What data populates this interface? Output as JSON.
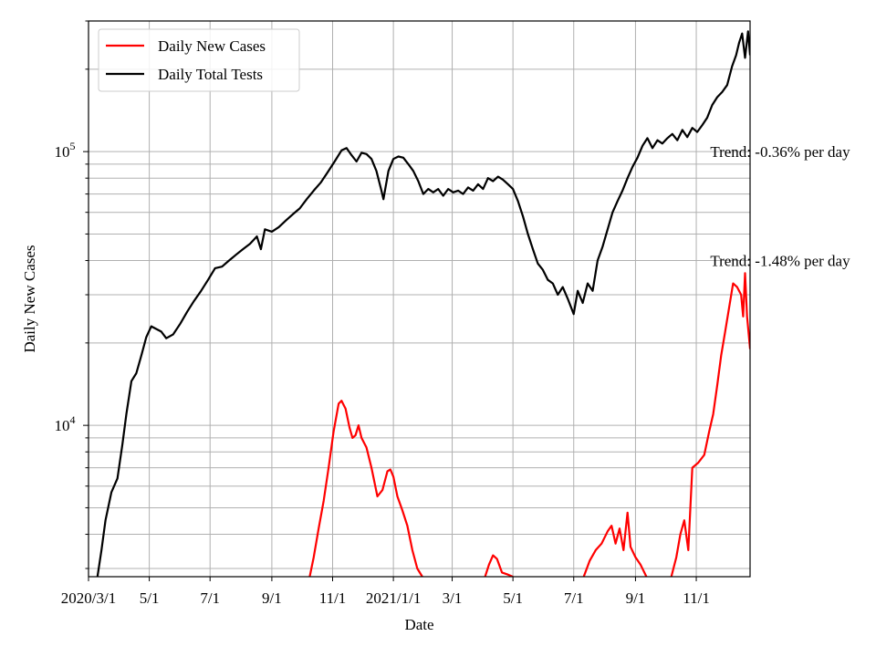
{
  "chart_data": {
    "type": "line",
    "title": "",
    "xlabel": "Date",
    "ylabel": "Daily New Cases",
    "yscale": "log",
    "ylim": [
      2800,
      300000
    ],
    "xlim": [
      "2020-03-01",
      "2021-12-25"
    ],
    "grid": true,
    "legend": {
      "position": "top-left"
    },
    "x_ticks": [
      {
        "date": "2020-03-01",
        "label": "2020/3/1"
      },
      {
        "date": "2020-05-01",
        "label": "5/1"
      },
      {
        "date": "2020-07-01",
        "label": "7/1"
      },
      {
        "date": "2020-09-01",
        "label": "9/1"
      },
      {
        "date": "2020-11-01",
        "label": "11/1"
      },
      {
        "date": "2021-01-01",
        "label": "2021/1/1"
      },
      {
        "date": "2021-03-01",
        "label": "3/1"
      },
      {
        "date": "2021-05-01",
        "label": "5/1"
      },
      {
        "date": "2021-07-01",
        "label": "7/1"
      },
      {
        "date": "2021-09-01",
        "label": "9/1"
      },
      {
        "date": "2021-11-01",
        "label": "11/1"
      }
    ],
    "y_ticks": [
      {
        "value": 10000,
        "base": "10",
        "exp": "4"
      },
      {
        "value": 100000,
        "base": "10",
        "exp": "5"
      }
    ],
    "series": [
      {
        "name": "Daily New Cases",
        "color": "#ff0000",
        "points": [
          [
            "2020-10-09",
            2800
          ],
          [
            "2020-10-13",
            3300
          ],
          [
            "2020-10-18",
            4200
          ],
          [
            "2020-10-23",
            5300
          ],
          [
            "2020-10-28",
            7000
          ],
          [
            "2020-11-02",
            9500
          ],
          [
            "2020-11-07",
            12000
          ],
          [
            "2020-11-10",
            12300
          ],
          [
            "2020-11-14",
            11500
          ],
          [
            "2020-11-18",
            9800
          ],
          [
            "2020-11-21",
            9000
          ],
          [
            "2020-11-24",
            9200
          ],
          [
            "2020-11-27",
            10000
          ],
          [
            "2020-11-30",
            9000
          ],
          [
            "2020-12-05",
            8300
          ],
          [
            "2020-12-10",
            7000
          ],
          [
            "2020-12-16",
            5500
          ],
          [
            "2020-12-21",
            5800
          ],
          [
            "2020-12-26",
            6800
          ],
          [
            "2020-12-29",
            6900
          ],
          [
            "2021-01-01",
            6500
          ],
          [
            "2021-01-05",
            5500
          ],
          [
            "2021-01-10",
            4900
          ],
          [
            "2021-01-15",
            4300
          ],
          [
            "2021-01-20",
            3500
          ],
          [
            "2021-01-25",
            3000
          ],
          [
            "2021-01-30",
            2800
          ],
          null,
          [
            "2021-04-03",
            2800
          ],
          [
            "2021-04-07",
            3100
          ],
          [
            "2021-04-11",
            3350
          ],
          [
            "2021-04-15",
            3250
          ],
          [
            "2021-04-20",
            2900
          ],
          [
            "2021-04-26",
            2850
          ],
          [
            "2021-05-01",
            2800
          ],
          null,
          [
            "2021-07-11",
            2800
          ],
          [
            "2021-07-17",
            3200
          ],
          [
            "2021-07-23",
            3500
          ],
          [
            "2021-07-29",
            3700
          ],
          [
            "2021-08-04",
            4100
          ],
          [
            "2021-08-08",
            4300
          ],
          [
            "2021-08-12",
            3700
          ],
          [
            "2021-08-16",
            4200
          ],
          [
            "2021-08-20",
            3500
          ],
          [
            "2021-08-24",
            4800
          ],
          [
            "2021-08-27",
            3600
          ],
          [
            "2021-09-01",
            3300
          ],
          [
            "2021-09-06",
            3100
          ],
          [
            "2021-09-12",
            2800
          ],
          null,
          [
            "2021-10-07",
            2800
          ],
          [
            "2021-10-12",
            3300
          ],
          [
            "2021-10-16",
            4000
          ],
          [
            "2021-10-20",
            4500
          ],
          [
            "2021-10-24",
            3500
          ],
          [
            "2021-10-28",
            7000
          ],
          [
            "2021-11-03",
            7300
          ],
          [
            "2021-11-09",
            7800
          ],
          [
            "2021-11-14",
            9500
          ],
          [
            "2021-11-18",
            11000
          ],
          [
            "2021-11-22",
            14000
          ],
          [
            "2021-11-26",
            18000
          ],
          [
            "2021-11-30",
            22000
          ],
          [
            "2021-12-04",
            27000
          ],
          [
            "2021-12-08",
            33000
          ],
          [
            "2021-12-12",
            32000
          ],
          [
            "2021-12-16",
            30000
          ],
          [
            "2021-12-18",
            25000
          ],
          [
            "2021-12-20",
            36000
          ],
          [
            "2021-12-22",
            25000
          ],
          [
            "2021-12-25",
            19000
          ]
        ]
      },
      {
        "name": "Daily Total Tests",
        "color": "#000000",
        "points": [
          [
            "2020-03-10",
            2800
          ],
          [
            "2020-03-14",
            3500
          ],
          [
            "2020-03-18",
            4500
          ],
          [
            "2020-03-24",
            5700
          ],
          [
            "2020-03-30",
            6400
          ],
          [
            "2020-04-04",
            8500
          ],
          [
            "2020-04-08",
            11000
          ],
          [
            "2020-04-13",
            14500
          ],
          [
            "2020-04-18",
            15500
          ],
          [
            "2020-04-23",
            18000
          ],
          [
            "2020-04-28",
            21000
          ],
          [
            "2020-05-03",
            23000
          ],
          [
            "2020-05-08",
            22500
          ],
          [
            "2020-05-13",
            22000
          ],
          [
            "2020-05-18",
            20800
          ],
          [
            "2020-05-25",
            21500
          ],
          [
            "2020-06-01",
            23500
          ],
          [
            "2020-06-08",
            26000
          ],
          [
            "2020-06-15",
            28500
          ],
          [
            "2020-06-22",
            31000
          ],
          [
            "2020-06-29",
            34000
          ],
          [
            "2020-07-06",
            37500
          ],
          [
            "2020-07-13",
            38000
          ],
          [
            "2020-07-20",
            40000
          ],
          [
            "2020-07-27",
            42000
          ],
          [
            "2020-08-03",
            44000
          ],
          [
            "2020-08-10",
            46000
          ],
          [
            "2020-08-17",
            49000
          ],
          [
            "2020-08-21",
            44000
          ],
          [
            "2020-08-25",
            52000
          ],
          [
            "2020-09-01",
            51000
          ],
          [
            "2020-09-08",
            53000
          ],
          [
            "2020-09-15",
            56000
          ],
          [
            "2020-09-22",
            59000
          ],
          [
            "2020-09-29",
            62000
          ],
          [
            "2020-10-06",
            67000
          ],
          [
            "2020-10-13",
            72000
          ],
          [
            "2020-10-20",
            77000
          ],
          [
            "2020-10-27",
            84000
          ],
          [
            "2020-11-03",
            92000
          ],
          [
            "2020-11-10",
            101000
          ],
          [
            "2020-11-15",
            103000
          ],
          [
            "2020-11-20",
            97000
          ],
          [
            "2020-11-25",
            92000
          ],
          [
            "2020-11-30",
            99000
          ],
          [
            "2020-12-05",
            98000
          ],
          [
            "2020-12-10",
            94000
          ],
          [
            "2020-12-15",
            85000
          ],
          [
            "2020-12-20",
            72000
          ],
          [
            "2020-12-22",
            67000
          ],
          [
            "2020-12-27",
            85000
          ],
          [
            "2021-01-01",
            94000
          ],
          [
            "2021-01-06",
            96000
          ],
          [
            "2021-01-11",
            95000
          ],
          [
            "2021-01-16",
            90000
          ],
          [
            "2021-01-21",
            85000
          ],
          [
            "2021-01-26",
            78000
          ],
          [
            "2021-01-31",
            70000
          ],
          [
            "2021-02-05",
            73000
          ],
          [
            "2021-02-10",
            71000
          ],
          [
            "2021-02-15",
            73000
          ],
          [
            "2021-02-20",
            69000
          ],
          [
            "2021-02-25",
            73000
          ],
          [
            "2021-03-02",
            71000
          ],
          [
            "2021-03-07",
            72000
          ],
          [
            "2021-03-12",
            70000
          ],
          [
            "2021-03-17",
            74000
          ],
          [
            "2021-03-22",
            72000
          ],
          [
            "2021-03-27",
            76000
          ],
          [
            "2021-04-01",
            73000
          ],
          [
            "2021-04-06",
            80000
          ],
          [
            "2021-04-11",
            78000
          ],
          [
            "2021-04-16",
            81000
          ],
          [
            "2021-04-21",
            79000
          ],
          [
            "2021-04-26",
            76000
          ],
          [
            "2021-05-01",
            73000
          ],
          [
            "2021-05-06",
            66000
          ],
          [
            "2021-05-11",
            58000
          ],
          [
            "2021-05-16",
            50000
          ],
          [
            "2021-05-21",
            44000
          ],
          [
            "2021-05-26",
            39000
          ],
          [
            "2021-05-31",
            37000
          ],
          [
            "2021-06-05",
            34000
          ],
          [
            "2021-06-10",
            33000
          ],
          [
            "2021-06-15",
            30000
          ],
          [
            "2021-06-20",
            32000
          ],
          [
            "2021-06-25",
            29000
          ],
          [
            "2021-07-01",
            25500
          ],
          [
            "2021-07-05",
            31000
          ],
          [
            "2021-07-10",
            28000
          ],
          [
            "2021-07-15",
            33000
          ],
          [
            "2021-07-20",
            31000
          ],
          [
            "2021-07-25",
            40000
          ],
          [
            "2021-07-30",
            45000
          ],
          [
            "2021-08-04",
            52000
          ],
          [
            "2021-08-09",
            60000
          ],
          [
            "2021-08-14",
            66000
          ],
          [
            "2021-08-19",
            72000
          ],
          [
            "2021-08-24",
            80000
          ],
          [
            "2021-08-29",
            88000
          ],
          [
            "2021-09-03",
            95000
          ],
          [
            "2021-09-08",
            105000
          ],
          [
            "2021-09-13",
            112000
          ],
          [
            "2021-09-18",
            103000
          ],
          [
            "2021-09-23",
            110000
          ],
          [
            "2021-09-28",
            107000
          ],
          [
            "2021-10-03",
            112000
          ],
          [
            "2021-10-08",
            116000
          ],
          [
            "2021-10-13",
            110000
          ],
          [
            "2021-10-18",
            120000
          ],
          [
            "2021-10-23",
            113000
          ],
          [
            "2021-10-28",
            122000
          ],
          [
            "2021-11-02",
            118000
          ],
          [
            "2021-11-07",
            125000
          ],
          [
            "2021-11-12",
            133000
          ],
          [
            "2021-11-17",
            148000
          ],
          [
            "2021-11-22",
            158000
          ],
          [
            "2021-11-27",
            165000
          ],
          [
            "2021-12-02",
            175000
          ],
          [
            "2021-12-07",
            205000
          ],
          [
            "2021-12-11",
            225000
          ],
          [
            "2021-12-14",
            250000
          ],
          [
            "2021-12-17",
            270000
          ],
          [
            "2021-12-20",
            220000
          ],
          [
            "2021-12-23",
            275000
          ],
          [
            "2021-12-25",
            225000
          ]
        ]
      }
    ],
    "annotations": [
      {
        "text": "Trend: -0.36% per day",
        "x": "2021-11-15",
        "y": 100000
      },
      {
        "text": "Trend: -1.48% per day",
        "x": "2021-11-15",
        "y": 40000
      }
    ]
  }
}
